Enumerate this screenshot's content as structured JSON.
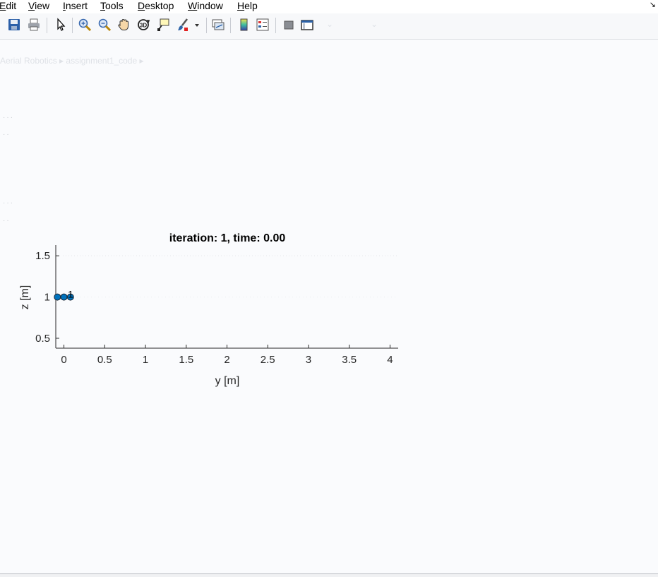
{
  "menubar": {
    "items": [
      {
        "label": "Edit",
        "accel": "E"
      },
      {
        "label": "View",
        "accel": "V"
      },
      {
        "label": "Insert",
        "accel": "I"
      },
      {
        "label": "Tools",
        "accel": "T"
      },
      {
        "label": "Desktop",
        "accel": "D"
      },
      {
        "label": "Window",
        "accel": "W"
      },
      {
        "label": "Help",
        "accel": "H"
      }
    ],
    "corner_icon": "restore-arrow-icon"
  },
  "toolbar": {
    "tools": [
      {
        "name": "save-icon"
      },
      {
        "name": "print-icon"
      },
      {
        "name": "pointer-icon"
      },
      {
        "name": "zoom-in-icon"
      },
      {
        "name": "zoom-out-icon"
      },
      {
        "name": "pan-icon"
      },
      {
        "name": "rotate-3d-icon"
      },
      {
        "name": "data-cursor-icon"
      },
      {
        "name": "brush-icon"
      },
      {
        "name": "dropdown-arrow-icon"
      },
      {
        "name": "link-plot-icon"
      },
      {
        "name": "colorbar-icon"
      },
      {
        "name": "legend-icon"
      },
      {
        "name": "hide-plot-tools-icon"
      },
      {
        "name": "show-plot-tools-icon"
      }
    ]
  },
  "background": {
    "breadcrumb": [
      "Aerial Robotics",
      "assignment1_code"
    ]
  },
  "chart_data": {
    "type": "scatter",
    "title": "iteration: 1, time: 0.00",
    "xlabel": "y [m]",
    "ylabel": "z [m]",
    "xlim": [
      -0.1,
      4.1
    ],
    "ylim": [
      0.38,
      1.63
    ],
    "xticks": [
      0,
      0.5,
      1,
      1.5,
      2,
      2.5,
      3,
      3.5,
      4
    ],
    "xtick_labels": [
      "0",
      "0.5",
      "1",
      "1.5",
      "2",
      "2.5",
      "3",
      "3.5",
      "4"
    ],
    "yticks": [
      0.5,
      1,
      1.5
    ],
    "ytick_labels": [
      "0.5",
      "1",
      "1.5"
    ],
    "grid": false,
    "points": [
      {
        "x": -0.08,
        "y": 1.0
      },
      {
        "x": 0.0,
        "y": 1.0
      },
      {
        "x": 0.08,
        "y": 1.0
      }
    ],
    "line": {
      "x": [
        -0.08,
        0.08
      ],
      "y": [
        1.0,
        1.0
      ]
    },
    "annotation": {
      "text": "1",
      "x": 0.04,
      "y": 1.0
    },
    "colors": {
      "marker_fill": "#0072bd",
      "marker_edge": "#1a2633",
      "axis": "#262626"
    }
  }
}
